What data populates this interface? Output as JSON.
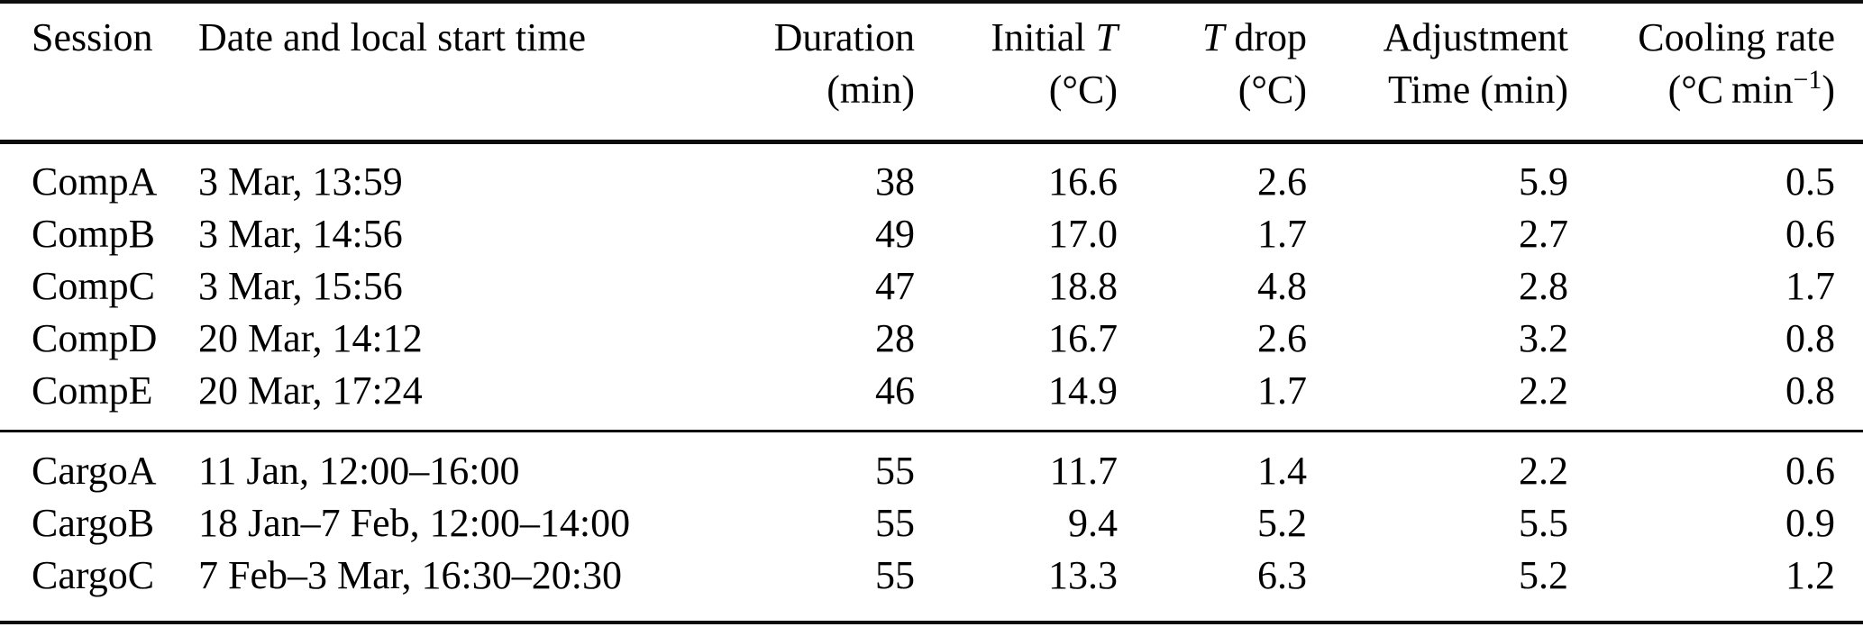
{
  "colors": {
    "text": "#000000",
    "background": "#ffffff",
    "rule": "#0d0d0d"
  },
  "table": {
    "columns": [
      {
        "id": "session",
        "align": "left",
        "lines": [
          [
            {
              "t": "Session"
            }
          ]
        ]
      },
      {
        "id": "date",
        "align": "left",
        "lines": [
          [
            {
              "t": "Date and local start time"
            }
          ]
        ]
      },
      {
        "id": "duration",
        "align": "right",
        "lines": [
          [
            {
              "t": "Duration"
            }
          ],
          [
            {
              "t": "(min)"
            }
          ]
        ]
      },
      {
        "id": "initial_t",
        "align": "right",
        "lines": [
          [
            {
              "t": "Initial "
            },
            {
              "t": "T",
              "italic": true
            }
          ],
          [
            {
              "t": "(°C)"
            }
          ]
        ]
      },
      {
        "id": "t_drop",
        "align": "right",
        "lines": [
          [
            {
              "t": "T",
              "italic": true
            },
            {
              "t": " drop"
            }
          ],
          [
            {
              "t": "(°C)"
            }
          ]
        ]
      },
      {
        "id": "adjustment",
        "align": "right",
        "lines": [
          [
            {
              "t": "Adjustment"
            }
          ],
          [
            {
              "t": "Time (min)"
            }
          ]
        ]
      },
      {
        "id": "cooling_rate",
        "align": "right",
        "lines": [
          [
            {
              "t": "Cooling rate"
            }
          ],
          [
            {
              "t": "(°C min"
            },
            {
              "t": "−1",
              "sup": true
            },
            {
              "t": ")"
            }
          ]
        ]
      }
    ],
    "groups": [
      {
        "id": "comp",
        "rows": [
          {
            "session": "CompA",
            "date": "3 Mar, 13:59",
            "duration": "38",
            "initial_t": "16.6",
            "t_drop": "2.6",
            "adjustment": "5.9",
            "cooling_rate": "0.5"
          },
          {
            "session": "CompB",
            "date": "3 Mar, 14:56",
            "duration": "49",
            "initial_t": "17.0",
            "t_drop": "1.7",
            "adjustment": "2.7",
            "cooling_rate": "0.6"
          },
          {
            "session": "CompC",
            "date": "3 Mar, 15:56",
            "duration": "47",
            "initial_t": "18.8",
            "t_drop": "4.8",
            "adjustment": "2.8",
            "cooling_rate": "1.7"
          },
          {
            "session": "CompD",
            "date": "20 Mar, 14:12",
            "duration": "28",
            "initial_t": "16.7",
            "t_drop": "2.6",
            "adjustment": "3.2",
            "cooling_rate": "0.8"
          },
          {
            "session": "CompE",
            "date": "20 Mar, 17:24",
            "duration": "46",
            "initial_t": "14.9",
            "t_drop": "1.7",
            "adjustment": "2.2",
            "cooling_rate": "0.8"
          }
        ]
      },
      {
        "id": "cargo",
        "rows": [
          {
            "session": "CargoA",
            "date": "11 Jan, 12:00–16:00",
            "duration": "55",
            "initial_t": "11.7",
            "t_drop": "1.4",
            "adjustment": "2.2",
            "cooling_rate": "0.6"
          },
          {
            "session": "CargoB",
            "date": "18 Jan–7 Feb, 12:00–14:00",
            "duration": "55",
            "initial_t": "9.4",
            "t_drop": "5.2",
            "adjustment": "5.5",
            "cooling_rate": "0.9"
          },
          {
            "session": "CargoC",
            "date": "7 Feb–3 Mar, 16:30–20:30",
            "duration": "55",
            "initial_t": "13.3",
            "t_drop": "6.3",
            "adjustment": "5.2",
            "cooling_rate": "1.2"
          }
        ]
      }
    ]
  }
}
